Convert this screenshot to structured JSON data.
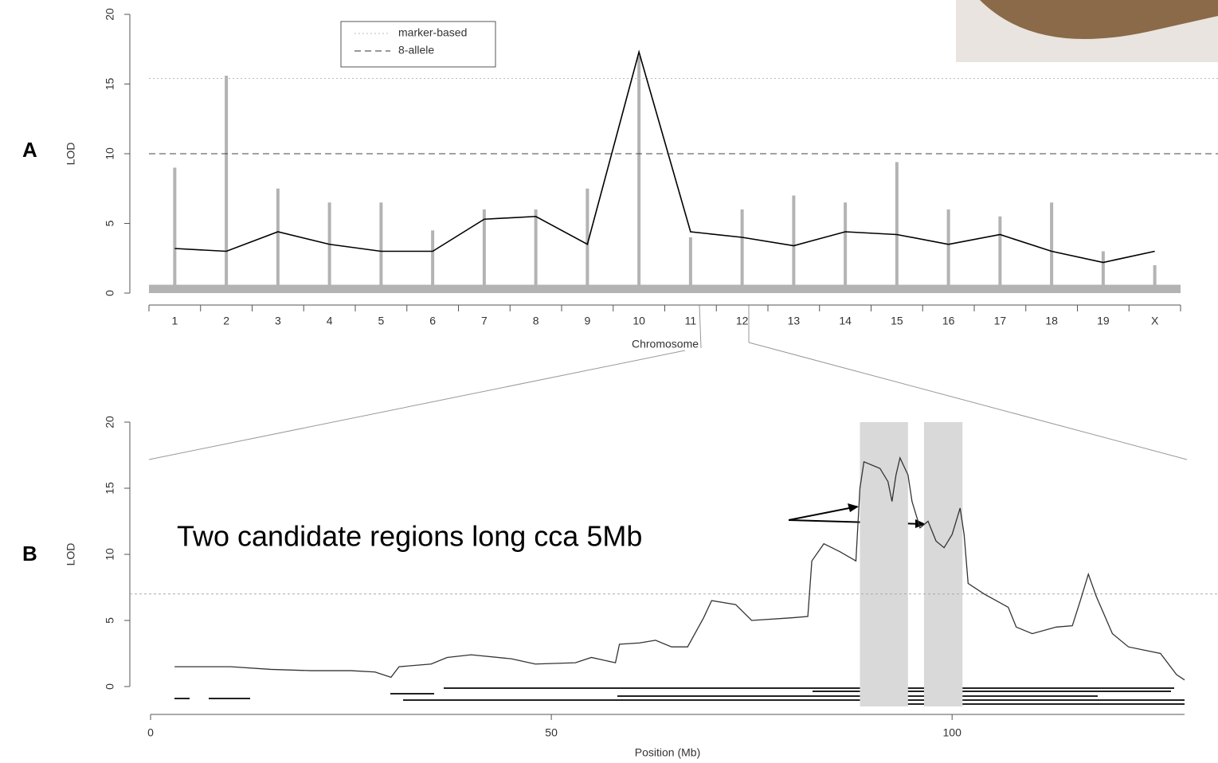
{
  "chart_data": [
    {
      "type": "line",
      "panel": "A",
      "ylabel": "LOD",
      "xlabel": "Chromosome",
      "categories": [
        "1",
        "2",
        "3",
        "4",
        "5",
        "6",
        "7",
        "8",
        "9",
        "10",
        "11",
        "12",
        "13",
        "14",
        "15",
        "16",
        "17",
        "18",
        "19",
        "X"
      ],
      "ylim": [
        0,
        20
      ],
      "yticks": [
        0,
        5,
        10,
        15,
        20
      ],
      "series": [
        {
          "name": "marker-based",
          "color": "#b3b3b3",
          "kind": "bar",
          "dash": "dotted",
          "threshold": 15.4,
          "values": [
            9,
            15.6,
            7.5,
            6.5,
            6.5,
            4.5,
            6,
            6,
            7.5,
            17,
            4,
            6,
            7,
            6.5,
            9.4,
            6,
            5.5,
            6.5,
            3,
            2
          ]
        },
        {
          "name": "8-allele",
          "color": "#000000",
          "kind": "line",
          "dash": "dashed",
          "threshold": 10,
          "values": [
            3.2,
            3,
            4.4,
            3.5,
            3,
            3,
            5.3,
            5.5,
            3.5,
            17.3,
            4.4,
            4,
            3.4,
            4.4,
            4.2,
            3.5,
            4.2,
            3,
            2.2,
            3
          ]
        }
      ]
    },
    {
      "type": "line",
      "panel": "B",
      "ylabel": "LOD",
      "xlabel": "Position (Mb)",
      "annotation": "Two candidate regions long cca 5Mb",
      "xlim": [
        0,
        129
      ],
      "xticks": [
        0,
        50,
        100
      ],
      "ylim": [
        0,
        20
      ],
      "yticks": [
        0,
        5,
        10,
        15,
        20
      ],
      "threshold": 7,
      "regions": [
        [
          88.5,
          94.5
        ],
        [
          96.5,
          101.3
        ]
      ],
      "x": [
        3,
        10,
        15,
        20,
        25,
        28,
        30,
        31,
        35,
        37,
        40,
        45,
        48,
        53,
        55,
        58,
        58.5,
        61,
        63,
        65,
        67,
        69,
        70,
        73,
        75,
        80,
        82,
        82.5,
        84,
        86,
        88,
        88.5,
        89,
        91,
        92,
        92.5,
        93,
        93.5,
        94.5,
        95,
        96,
        97,
        98,
        99,
        100,
        101,
        101.5,
        102,
        104,
        107,
        108,
        110,
        113,
        115,
        116,
        117,
        118,
        120,
        122,
        126,
        128,
        129
      ],
      "series": [
        {
          "color": "#333333",
          "values": [
            1.5,
            1.5,
            1.3,
            1.2,
            1.2,
            1.1,
            0.7,
            1.5,
            1.7,
            2.2,
            2.4,
            2.1,
            1.7,
            1.8,
            2.2,
            1.8,
            3.2,
            3.3,
            3.5,
            3,
            3,
            5.2,
            6.5,
            6.2,
            5,
            5.2,
            5.3,
            9.5,
            10.8,
            10.2,
            9.5,
            15,
            17,
            16.5,
            15.5,
            14,
            16,
            17.3,
            16,
            14,
            12,
            12.5,
            11,
            10.5,
            11.5,
            13.5,
            11.5,
            7.8,
            7,
            6,
            4.5,
            4,
            4.5,
            4.6,
            6.5,
            8.5,
            6.8,
            4,
            3,
            2.5,
            0.9,
            0.5
          ]
        }
      ]
    }
  ]
}
